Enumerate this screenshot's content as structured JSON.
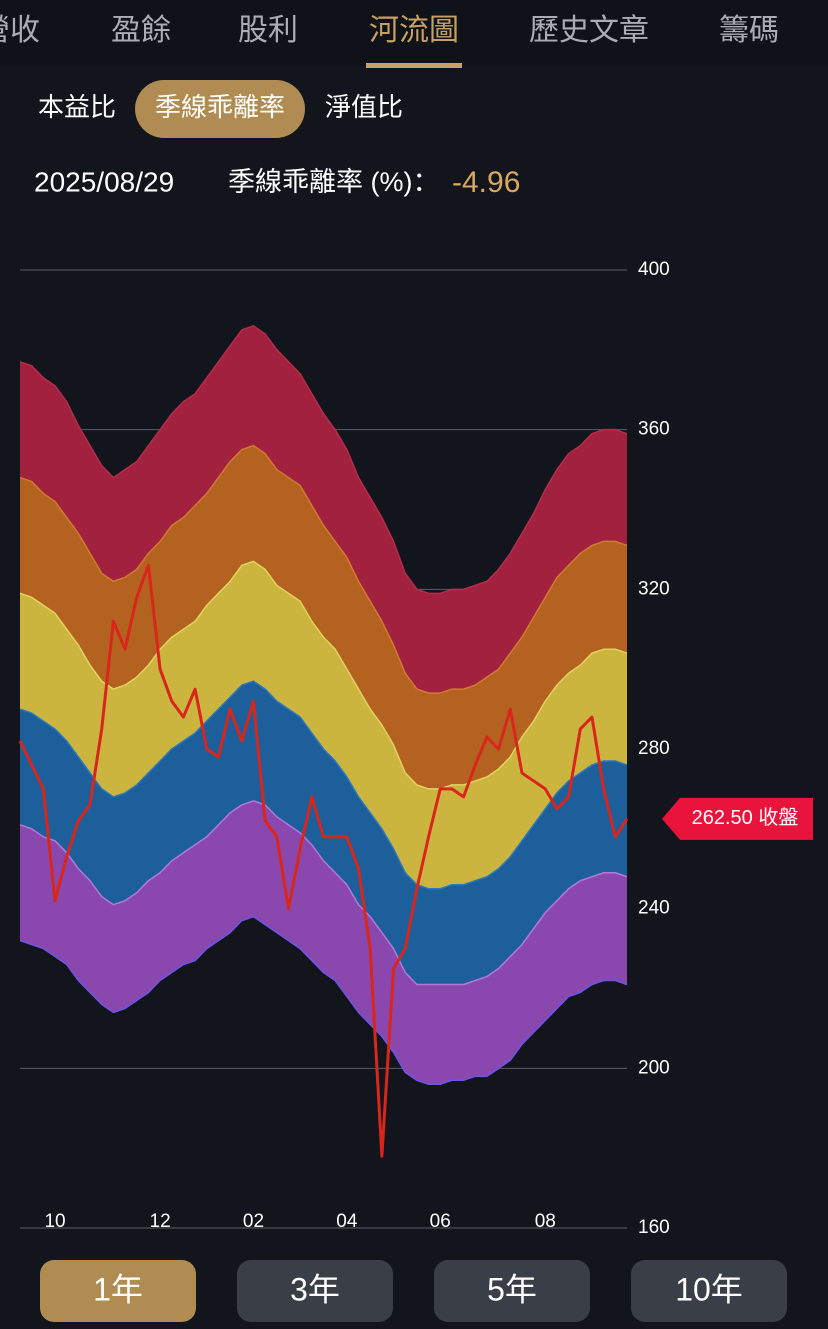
{
  "tabs": [
    "營收",
    "盈餘",
    "股利",
    "河流圖",
    "歷史文章",
    "籌碼"
  ],
  "sub_tabs": [
    "本益比",
    "季線乖離率",
    "淨值比"
  ],
  "info": {
    "date": "2025/08/29",
    "label": "季線乖離率 (%)：",
    "value": -4.96
  },
  "chart_data": {
    "type": "river",
    "categories": [
      null,
      null,
      null,
      "10",
      null,
      null,
      null,
      null,
      null,
      null,
      null,
      null,
      "12",
      null,
      null,
      null,
      null,
      null,
      null,
      null,
      "02",
      null,
      null,
      null,
      null,
      null,
      null,
      null,
      "04",
      null,
      null,
      null,
      null,
      null,
      null,
      null,
      "06",
      null,
      null,
      null,
      null,
      null,
      null,
      null,
      null,
      "08",
      null,
      null,
      null,
      null,
      null,
      null,
      null
    ],
    "ylim": [
      160,
      400
    ],
    "yticks": [
      160,
      200,
      240,
      280,
      320,
      360,
      400
    ],
    "grid": true,
    "band_colors": [
      "#8a48ae",
      "#1d5f9b",
      "#cbb53f",
      "#b4621f",
      "#a1213e"
    ],
    "series": [
      {
        "color": "#6b55e8",
        "values": [
          232,
          231,
          230,
          228,
          226,
          222,
          219,
          216,
          214,
          215,
          217,
          219,
          222,
          224,
          226,
          227,
          230,
          232,
          234,
          237,
          238,
          236,
          234,
          232,
          230,
          227,
          224,
          222,
          218,
          214,
          211,
          208,
          204,
          199,
          197,
          196,
          196,
          197,
          197,
          198,
          198,
          200,
          202,
          206,
          209,
          212,
          215,
          218,
          219,
          221,
          222,
          222,
          221
        ]
      },
      {
        "color": "#b07ad6",
        "values": [
          261,
          260,
          258,
          257,
          254,
          250,
          247,
          243,
          241,
          242,
          244,
          247,
          249,
          252,
          254,
          256,
          258,
          261,
          264,
          266,
          267,
          266,
          263,
          261,
          259,
          256,
          252,
          249,
          246,
          241,
          238,
          234,
          230,
          224,
          221,
          221,
          221,
          221,
          221,
          222,
          223,
          225,
          228,
          231,
          235,
          239,
          242,
          245,
          247,
          248,
          249,
          249,
          248
        ]
      },
      {
        "color": "#2b78c0",
        "values": [
          290,
          289,
          287,
          285,
          282,
          278,
          274,
          270,
          268,
          269,
          271,
          274,
          277,
          280,
          282,
          284,
          287,
          290,
          293,
          296,
          297,
          295,
          292,
          290,
          288,
          284,
          280,
          277,
          273,
          268,
          264,
          260,
          255,
          249,
          246,
          245,
          245,
          246,
          246,
          247,
          248,
          250,
          253,
          257,
          261,
          265,
          269,
          272,
          274,
          276,
          277,
          277,
          276
        ]
      },
      {
        "color": "#e3d160",
        "values": [
          319,
          318,
          316,
          314,
          310,
          306,
          301,
          297,
          295,
          296,
          298,
          301,
          305,
          308,
          310,
          312,
          316,
          319,
          322,
          326,
          327,
          325,
          321,
          319,
          317,
          312,
          308,
          305,
          300,
          295,
          290,
          286,
          281,
          274,
          271,
          270,
          270,
          271,
          271,
          272,
          273,
          275,
          278,
          283,
          287,
          292,
          296,
          299,
          301,
          304,
          305,
          305,
          304
        ]
      },
      {
        "color": "#d07a33",
        "values": [
          348,
          347,
          344,
          342,
          338,
          334,
          329,
          324,
          322,
          323,
          325,
          329,
          332,
          336,
          338,
          341,
          344,
          348,
          352,
          355,
          356,
          354,
          350,
          348,
          346,
          341,
          336,
          332,
          328,
          322,
          317,
          312,
          306,
          299,
          295,
          294,
          294,
          295,
          295,
          296,
          298,
          300,
          304,
          308,
          313,
          318,
          323,
          326,
          329,
          331,
          332,
          332,
          331
        ]
      },
      {
        "color": "#b52d4c",
        "values": [
          377,
          376,
          373,
          371,
          367,
          361,
          356,
          351,
          348,
          350,
          352,
          356,
          360,
          364,
          367,
          369,
          373,
          377,
          381,
          385,
          386,
          384,
          380,
          377,
          374,
          369,
          364,
          360,
          355,
          348,
          343,
          338,
          332,
          324,
          320,
          319,
          319,
          320,
          320,
          321,
          322,
          325,
          329,
          334,
          339,
          345,
          350,
          354,
          356,
          359,
          360,
          360,
          359
        ]
      }
    ],
    "price": {
      "color": "#d8261c",
      "values": [
        282,
        276,
        270,
        242,
        253,
        262,
        266,
        285,
        312,
        305,
        318,
        326,
        300,
        292,
        288,
        295,
        280,
        278,
        290,
        282,
        292,
        262,
        258,
        240,
        255,
        268,
        258,
        258,
        258,
        250,
        230,
        178,
        225,
        230,
        245,
        258,
        270,
        270,
        268,
        276,
        283,
        280,
        290,
        274,
        272,
        270,
        265,
        268,
        285,
        288,
        270,
        258,
        262.5
      ]
    },
    "price_tag": {
      "value": 262.5,
      "label": "262.50 收盤"
    }
  },
  "periods": [
    "1年",
    "3年",
    "5年",
    "10年"
  ]
}
